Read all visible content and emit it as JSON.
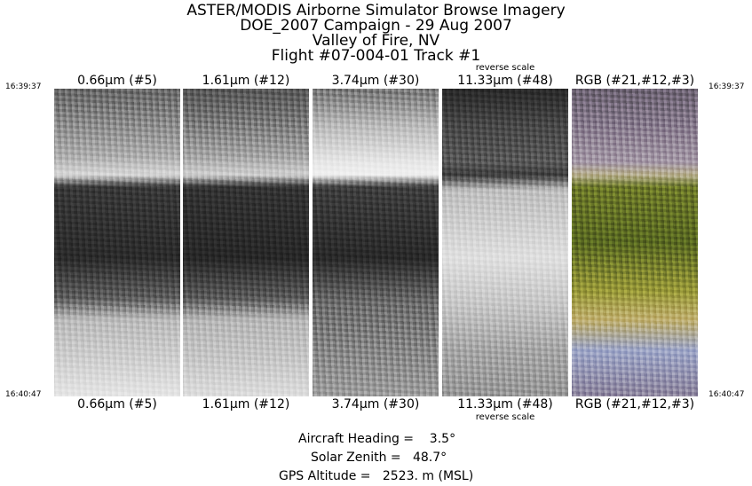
{
  "title_lines": [
    "ASTER/MODIS Airborne Simulator Browse Imagery",
    "DOE_2007 Campaign - 29 Aug 2007",
    "Valley of Fire, NV",
    "Flight #07-004-01 Track #1"
  ],
  "times": {
    "start": "16:39:37",
    "end": "16:40:47"
  },
  "panels": [
    {
      "label": "0.66µm (#5)",
      "note": ""
    },
    {
      "label": "1.61µm (#12)",
      "note": ""
    },
    {
      "label": "3.74µm (#30)",
      "note": ""
    },
    {
      "label": "11.33µm (#48)",
      "note": "reverse scale"
    },
    {
      "label": "RGB (#21,#12,#3)",
      "note": ""
    }
  ],
  "footer": {
    "heading": "Aircraft Heading =    3.5°",
    "zenith": "Solar Zenith =   48.7°",
    "altitude": "GPS Altitude =   2523. m (MSL)"
  }
}
